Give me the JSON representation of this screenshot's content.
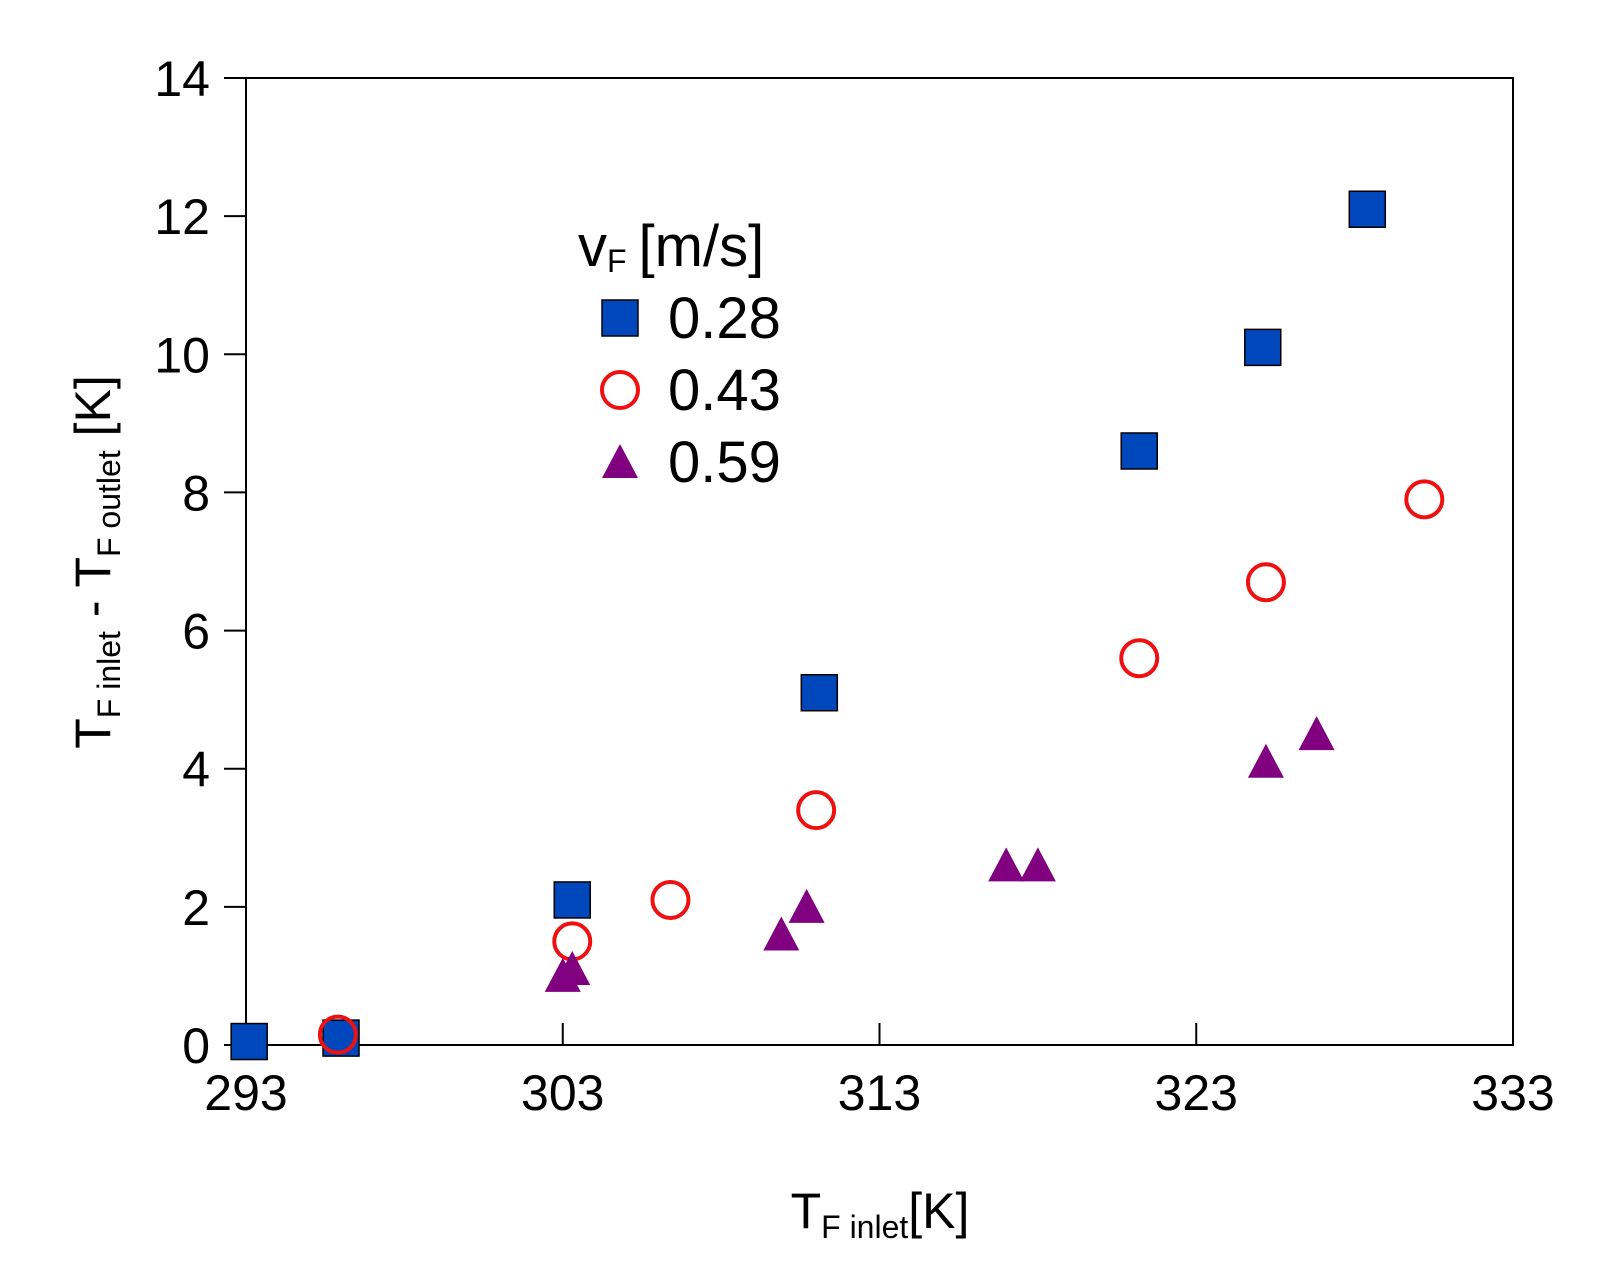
{
  "chart_data": {
    "type": "scatter",
    "xlabel": {
      "main": "T",
      "sub": "F inlet",
      "unit": "[K]"
    },
    "ylabel": {
      "main1": "T",
      "sub1": "F inlet",
      "mid": " - T",
      "sub2": "F outlet",
      "unit": " [K]"
    },
    "xlim": [
      293,
      333
    ],
    "ylim": [
      0,
      14
    ],
    "xticks": [
      293,
      303,
      313,
      323,
      333
    ],
    "yticks": [
      0,
      2,
      4,
      6,
      8,
      10,
      12,
      14
    ],
    "legend": {
      "title_main": "v",
      "title_sub": "F",
      "title_unit": "[m/s]",
      "position": "upper-left-center"
    },
    "series": [
      {
        "name": "0.28",
        "marker": "square",
        "color": "#0047BB",
        "points": [
          [
            293.1,
            0.05
          ],
          [
            296.0,
            0.1
          ],
          [
            303.3,
            2.1
          ],
          [
            311.1,
            5.1
          ],
          [
            321.2,
            8.6
          ],
          [
            325.1,
            10.1
          ],
          [
            328.4,
            12.1
          ]
        ]
      },
      {
        "name": "0.43",
        "marker": "circle-open",
        "color": "#EE1111",
        "points": [
          [
            295.9,
            0.15
          ],
          [
            303.3,
            1.5
          ],
          [
            306.4,
            2.1
          ],
          [
            311.0,
            3.4
          ],
          [
            321.2,
            5.6
          ],
          [
            325.2,
            6.7
          ],
          [
            330.2,
            7.9
          ]
        ]
      },
      {
        "name": "0.59",
        "marker": "triangle",
        "color": "#800080",
        "points": [
          [
            303.0,
            1.0
          ],
          [
            303.3,
            1.1
          ],
          [
            309.9,
            1.6
          ],
          [
            310.7,
            2.0
          ],
          [
            317.0,
            2.6
          ],
          [
            318.0,
            2.6
          ],
          [
            325.2,
            4.1
          ],
          [
            326.8,
            4.5
          ]
        ]
      }
    ]
  }
}
